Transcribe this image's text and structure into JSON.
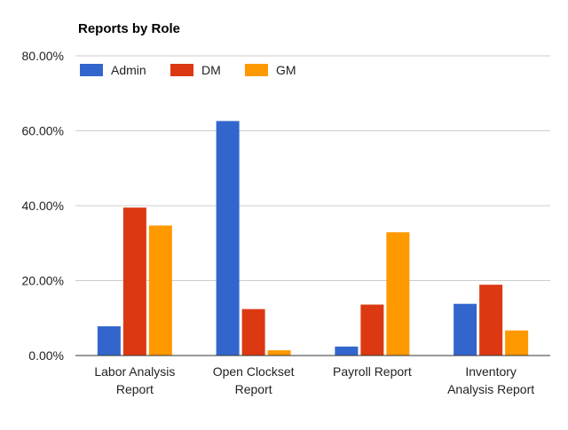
{
  "chart_data": {
    "type": "bar",
    "title": "Reports by Role",
    "xlabel": "",
    "ylabel": "",
    "categories": [
      [
        "Labor Analysis",
        "Report"
      ],
      [
        "Open Clockset",
        "Report"
      ],
      [
        "Payroll Report"
      ],
      [
        "Inventory",
        "Analysis Report"
      ]
    ],
    "series": [
      {
        "name": "Admin",
        "color": "#3366cc",
        "values": [
          7.8,
          62.6,
          2.4,
          13.8
        ]
      },
      {
        "name": "DM",
        "color": "#dc3912",
        "values": [
          39.5,
          12.4,
          13.6,
          18.9
        ]
      },
      {
        "name": "GM",
        "color": "#ff9900",
        "values": [
          34.7,
          1.4,
          32.9,
          6.7
        ]
      }
    ],
    "ylim": [
      0,
      80
    ],
    "yticks": [
      "0.00%",
      "20.00%",
      "40.00%",
      "60.00%",
      "80.00%"
    ],
    "grid": true,
    "legend_position": "top-left"
  }
}
